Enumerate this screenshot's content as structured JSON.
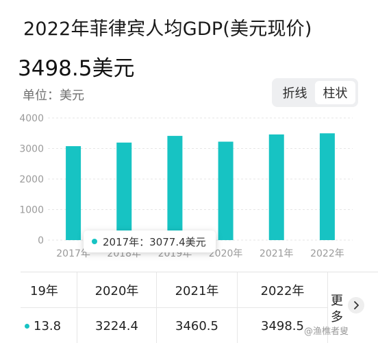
{
  "title": "2022年菲律宾人均GDP(美元现价)",
  "headline_value": "3498.5美元",
  "unit_label": "单位：美元",
  "toggle": {
    "options": [
      "折线",
      "柱状"
    ],
    "active": "柱状"
  },
  "colors": {
    "bar": "#17c3c3",
    "grid": "#e6e6e6",
    "axis_text": "#9a9a9a"
  },
  "chart_data": {
    "type": "bar",
    "categories": [
      "2017年",
      "2018年",
      "2019年",
      "2020年",
      "2021年",
      "2022年"
    ],
    "values": [
      3077.4,
      3194.7,
      3413.8,
      3224.4,
      3460.5,
      3498.5
    ],
    "ylim": [
      0,
      4000
    ],
    "yticks": [
      "0",
      "1000",
      "2000",
      "3000",
      "4000"
    ],
    "grid": true,
    "unit": "美元"
  },
  "tooltip": {
    "text": "2017年：3077.4美元"
  },
  "table": {
    "first": {
      "head": "19年",
      "value": "13.8"
    },
    "columns": [
      {
        "head": "2020年",
        "value": "3224.4"
      },
      {
        "head": "2021年",
        "value": "3460.5"
      },
      {
        "head": "2022年",
        "value": "3498.5"
      }
    ],
    "more_label": "更多",
    "more_icon": "chevron-right-icon"
  },
  "watermark": "@渔樵者叟"
}
